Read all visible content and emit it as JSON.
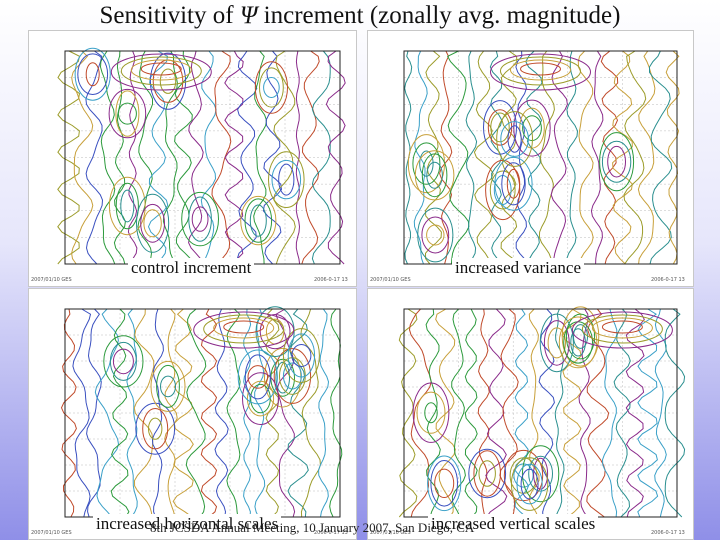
{
  "slide": {
    "title_prefix": "Sensitivity of ",
    "title_symbol": "Ψ",
    "title_suffix": " increment (zonally avg. magnitude)",
    "footer_note": "8th JCSDA Annual Meeting, 10 January 2007, San Diego, CA"
  },
  "panels": [
    {
      "id": "control",
      "caption": "control increment",
      "foot_left": "2007/01/10 GES",
      "foot_right": "2006-0-17 13"
    },
    {
      "id": "variance",
      "caption": "increased variance",
      "foot_left": "2007/01/10 GES",
      "foot_right": "2006-0-17 13"
    },
    {
      "id": "horizontal",
      "caption": "increased horizontal scales",
      "foot_left": "2007/01/10 GES",
      "foot_right": "2006-0-17 13"
    },
    {
      "id": "vertical",
      "caption": "increased vertical scales",
      "foot_left": "2007/01/10 GES",
      "foot_right": "2006-0-17 13"
    }
  ],
  "colors": {
    "contour_palette": [
      "#2a8f8f",
      "#3aa0c8",
      "#2c9a3c",
      "#9c9c2a",
      "#c8a03a",
      "#c04a2a",
      "#8a2a8a",
      "#3a50c0"
    ]
  }
}
